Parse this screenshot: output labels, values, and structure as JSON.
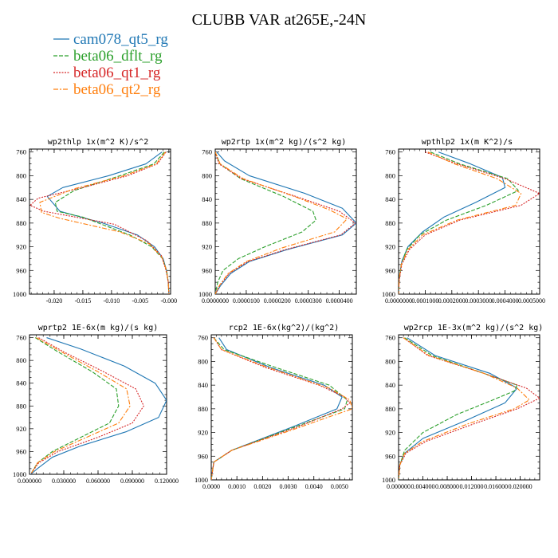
{
  "figure": {
    "title": "CLUBB VAR at265E,-24N"
  },
  "colors": {
    "cam078_qt5_rg": "#1f77b4",
    "beta06_dflt_rg": "#2ca02c",
    "beta06_qt1_rg": "#d62728",
    "beta06_qt2_rg": "#ff7f0e"
  },
  "legend": {
    "placement": "top-left",
    "entries": [
      {
        "name": "cam078_qt5_rg",
        "color": "#1f77b4",
        "style": "solid"
      },
      {
        "name": "beta06_dflt_rg",
        "color": "#2ca02c",
        "style": "dashed"
      },
      {
        "name": "beta06_qt1_rg",
        "color": "#d62728",
        "style": "dotted"
      },
      {
        "name": "beta06_qt2_rg",
        "color": "#ff7f0e",
        "style": "dashdot"
      }
    ]
  },
  "chart_data": [
    {
      "type": "line",
      "title": "wp2thlp  1x(m^2 K)/s^2",
      "xlim": [
        -0.0243,
        0.0003
      ],
      "xticks": [
        -0.02,
        -0.015,
        -0.01,
        -0.005,
        0.0
      ],
      "xtick_labels": [
        "-0.020",
        "-0.015",
        "-0.010",
        "-0.005",
        "-0.000"
      ],
      "ylim": [
        1000,
        755
      ],
      "yticks": [
        760,
        800,
        840,
        880,
        920,
        960,
        1000
      ],
      "series": [
        {
          "name": "cam078_qt5_rg",
          "x": [
            -0.0012,
            -0.004,
            -0.0105,
            -0.0185,
            -0.0212,
            -0.019,
            -0.0115,
            -0.0055,
            -0.0025,
            -0.001,
            -0.0004,
            -0.0001,
            0.0
          ],
          "y": [
            760,
            780,
            800,
            820,
            835,
            860,
            880,
            900,
            920,
            940,
            960,
            980,
            1000
          ]
        },
        {
          "name": "beta06_dflt_rg",
          "x": [
            -0.0008,
            -0.0026,
            -0.0085,
            -0.0165,
            -0.0198,
            -0.0195,
            -0.015,
            -0.0068,
            -0.003,
            -0.0011,
            -0.0004,
            -0.0001,
            0.0
          ],
          "y": [
            760,
            780,
            800,
            825,
            845,
            860,
            870,
            900,
            920,
            940,
            960,
            980,
            1000
          ]
        },
        {
          "name": "beta06_qt1_rg",
          "x": [
            -0.0005,
            -0.002,
            -0.0072,
            -0.015,
            -0.0228,
            -0.0242,
            -0.0218,
            -0.0095,
            -0.0038,
            -0.0013,
            -0.0005,
            -0.0001,
            0.0
          ],
          "y": [
            760,
            780,
            800,
            820,
            838,
            850,
            860,
            882,
            910,
            935,
            960,
            980,
            1000
          ]
        },
        {
          "name": "beta06_qt2_rg",
          "x": [
            -0.0006,
            -0.0022,
            -0.0078,
            -0.0165,
            -0.0225,
            -0.0222,
            -0.019,
            -0.0085,
            -0.0034,
            -0.0012,
            -0.0004,
            -0.0001,
            0.0
          ],
          "y": [
            760,
            780,
            800,
            822,
            845,
            862,
            872,
            895,
            915,
            938,
            960,
            980,
            1000
          ]
        }
      ]
    },
    {
      "type": "line",
      "title": "wp2rtp  1x(m^2 kg)/(s^2 kg)",
      "xlim": [
        0.0,
        4.55e-05
      ],
      "xticks": [
        0.0,
        1e-05,
        2e-05,
        3e-05,
        4e-05
      ],
      "xtick_labels": [
        "0.0000000",
        "0.0000100",
        "0.0000200",
        "0.0000300",
        "0.0000400"
      ],
      "ylim": [
        1000,
        755
      ],
      "yticks": [
        760,
        800,
        840,
        880,
        920,
        960,
        1000
      ],
      "series": [
        {
          "name": "cam078_qt5_rg",
          "x": [
            5e-07,
            3e-06,
            1.1e-05,
            2.9e-05,
            4.1e-05,
            4.55e-05,
            4.1e-05,
            2.3e-05,
            1.1e-05,
            5e-06,
            1.8e-06,
            0.0
          ],
          "y": [
            760,
            775,
            800,
            830,
            855,
            880,
            900,
            925,
            945,
            965,
            985,
            1000
          ]
        },
        {
          "name": "beta06_dflt_rg",
          "x": [
            0.0,
            1.5e-06,
            8.2e-06,
            2.2e-05,
            3.15e-05,
            3.25e-05,
            2.8e-05,
            1.6e-05,
            7.5e-06,
            2.5e-06,
            8e-07,
            0.0
          ],
          "y": [
            760,
            780,
            805,
            835,
            860,
            875,
            895,
            920,
            940,
            960,
            980,
            1000
          ]
        },
        {
          "name": "beta06_qt1_rg",
          "x": [
            0.0,
            1.2e-06,
            8.5e-06,
            2.6e-05,
            4e-05,
            4.52e-05,
            4.05e-05,
            2.25e-05,
            1.05e-05,
            4.5e-06,
            1.5e-06,
            0.0
          ],
          "y": [
            760,
            780,
            805,
            835,
            860,
            880,
            900,
            925,
            945,
            965,
            985,
            1000
          ]
        },
        {
          "name": "beta06_qt2_rg",
          "x": [
            0.0,
            1.6e-06,
            9e-06,
            2.55e-05,
            3.7e-05,
            4.25e-05,
            3.85e-05,
            2.15e-05,
            1e-05,
            4.2e-06,
            1.4e-06,
            0.0
          ],
          "y": [
            760,
            780,
            805,
            835,
            858,
            873,
            895,
            922,
            945,
            965,
            985,
            1000
          ]
        }
      ]
    },
    {
      "type": "line",
      "title": "wpthlp2  1x(m K^2)/s",
      "xlim": [
        0.0,
        0.00053
      ],
      "xticks": [
        0.0,
        0.0001,
        0.0002,
        0.0003,
        0.0004,
        0.0005
      ],
      "xtick_labels": [
        "0.0000000",
        "0.0001000",
        "0.0002000",
        "0.0003000",
        "0.0004000",
        "0.0005000"
      ],
      "ylim": [
        1000,
        755
      ],
      "yticks": [
        760,
        800,
        840,
        880,
        920,
        960,
        1000
      ],
      "series": [
        {
          "name": "cam078_qt5_rg",
          "x": [
            0.00015,
            0.00027,
            0.00039,
            0.0004,
            0.00029,
            0.00017,
            9e-05,
            3.5e-05,
            1.2e-05,
            3e-06,
            0.0
          ],
          "y": [
            760,
            780,
            803,
            820,
            845,
            870,
            895,
            920,
            945,
            970,
            1000
          ]
        },
        {
          "name": "beta06_dflt_rg",
          "x": [
            0.00012,
            0.00023,
            0.00041,
            0.00045,
            0.00033,
            0.00018,
            8e-05,
            3e-05,
            1e-05,
            2e-06,
            0.0
          ],
          "y": [
            760,
            780,
            805,
            825,
            850,
            875,
            900,
            925,
            950,
            975,
            1000
          ]
        },
        {
          "name": "beta06_qt1_rg",
          "x": [
            0.0001,
            0.00022,
            0.0004,
            0.00053,
            0.00046,
            0.00023,
            0.0001,
            4e-05,
            1.2e-05,
            3e-06,
            0.0
          ],
          "y": [
            760,
            780,
            805,
            830,
            850,
            875,
            900,
            925,
            950,
            975,
            1000
          ]
        },
        {
          "name": "beta06_qt2_rg",
          "x": [
            0.00011,
            0.00021,
            0.00037,
            0.00046,
            0.00044,
            0.00022,
            9e-05,
            3.5e-05,
            1e-05,
            2e-06,
            0.0
          ],
          "y": [
            760,
            780,
            805,
            830,
            850,
            875,
            900,
            925,
            950,
            975,
            1000
          ]
        }
      ]
    },
    {
      "type": "line",
      "title": "wprtp2  1E-6x(m kg)/(s kg)",
      "xlim": [
        0.0,
        0.12
      ],
      "xticks": [
        0.0,
        0.03,
        0.06,
        0.09,
        0.12
      ],
      "xtick_labels": [
        "0.000000",
        "0.030000",
        "0.060000",
        "0.090000",
        "0.120000"
      ],
      "ylim": [
        1000,
        755
      ],
      "yticks": [
        760,
        800,
        840,
        880,
        920,
        960,
        1000
      ],
      "series": [
        {
          "name": "cam078_qt5_rg",
          "x": [
            0.015,
            0.045,
            0.083,
            0.11,
            0.12,
            0.113,
            0.085,
            0.045,
            0.02,
            0.007,
            0.001
          ],
          "y": [
            760,
            780,
            810,
            840,
            870,
            900,
            925,
            950,
            970,
            990,
            1000
          ]
        },
        {
          "name": "beta06_dflt_rg",
          "x": [
            0.005,
            0.025,
            0.055,
            0.076,
            0.078,
            0.07,
            0.045,
            0.02,
            0.007,
            0.001
          ],
          "y": [
            760,
            785,
            820,
            850,
            880,
            910,
            935,
            960,
            980,
            1000
          ]
        },
        {
          "name": "beta06_qt1_rg",
          "x": [
            0.008,
            0.03,
            0.065,
            0.093,
            0.1,
            0.09,
            0.06,
            0.025,
            0.008,
            0.001
          ],
          "y": [
            760,
            785,
            820,
            850,
            880,
            910,
            935,
            960,
            980,
            1000
          ]
        },
        {
          "name": "beta06_qt2_rg",
          "x": [
            0.006,
            0.028,
            0.06,
            0.085,
            0.088,
            0.078,
            0.05,
            0.022,
            0.007,
            0.001
          ],
          "y": [
            760,
            785,
            820,
            850,
            880,
            910,
            935,
            960,
            980,
            1000
          ]
        }
      ]
    },
    {
      "type": "line",
      "title": "rcp2  1E-6x(kg^2)/(kg^2)",
      "xlim": [
        0.0,
        0.0055
      ],
      "xticks": [
        0.0,
        0.001,
        0.002,
        0.003,
        0.004,
        0.005
      ],
      "xtick_labels": [
        "0.0000",
        "0.0010",
        "0.0020",
        "0.0030",
        "0.0040",
        "0.0050"
      ],
      "ylim": [
        1000,
        755
      ],
      "yticks": [
        760,
        800,
        840,
        880,
        920,
        960,
        1000
      ],
      "series": [
        {
          "name": "cam078_qt5_rg",
          "x": [
            0.0003,
            0.0006,
            0.0023,
            0.0044,
            0.0051,
            0.0049,
            0.0032,
            0.0008,
            0.0001,
            0.0
          ],
          "y": [
            760,
            780,
            810,
            840,
            860,
            880,
            910,
            950,
            970,
            1000
          ]
        },
        {
          "name": "beta06_dflt_rg",
          "x": [
            0.0001,
            0.0005,
            0.0025,
            0.0046,
            0.0053,
            0.0052,
            0.0033,
            0.0008,
            0.0001,
            0.0
          ],
          "y": [
            760,
            780,
            810,
            840,
            865,
            880,
            910,
            950,
            970,
            1000
          ]
        },
        {
          "name": "beta06_qt1_rg",
          "x": [
            0.0001,
            0.0004,
            0.0021,
            0.0042,
            0.0052,
            0.0054,
            0.0051,
            0.0034,
            0.0008,
            0.0001,
            0.0
          ],
          "y": [
            760,
            780,
            810,
            840,
            860,
            870,
            880,
            910,
            950,
            970,
            1000
          ]
        },
        {
          "name": "beta06_qt2_rg",
          "x": [
            0.0001,
            0.0004,
            0.0022,
            0.0046,
            0.0054,
            0.0055,
            0.0045,
            0.0032,
            0.0008,
            0.0001,
            0.0
          ],
          "y": [
            760,
            780,
            810,
            845,
            865,
            880,
            895,
            915,
            950,
            970,
            1000
          ]
        }
      ]
    },
    {
      "type": "line",
      "title": "wp2rcp  1E-3x(m^2 kg)/(s^2 kg)",
      "xlim": [
        0.0,
        0.0232
      ],
      "xticks": [
        0.0,
        0.004,
        0.008,
        0.012,
        0.016,
        0.02
      ],
      "xtick_labels": [
        "0.000000",
        "0.004000",
        "0.008000",
        "0.012000",
        "0.016000",
        "0.020000"
      ],
      "ylim": [
        1000,
        755
      ],
      "yticks": [
        760,
        800,
        840,
        880,
        920,
        960,
        1000
      ],
      "series": [
        {
          "name": "cam078_qt5_rg",
          "x": [
            0.0014,
            0.006,
            0.015,
            0.0195,
            0.0175,
            0.011,
            0.004,
            0.001,
            0.0002,
            0.0
          ],
          "y": [
            760,
            790,
            820,
            845,
            870,
            900,
            930,
            955,
            975,
            1000
          ]
        },
        {
          "name": "beta06_dflt_rg",
          "x": [
            0.001,
            0.0055,
            0.014,
            0.0195,
            0.019,
            0.0155,
            0.0095,
            0.004,
            0.001,
            0.0002,
            0.0
          ],
          "y": [
            760,
            790,
            820,
            840,
            850,
            865,
            890,
            920,
            950,
            975,
            1000
          ]
        },
        {
          "name": "beta06_qt1_rg",
          "x": [
            0.0008,
            0.0048,
            0.014,
            0.021,
            0.0232,
            0.0195,
            0.0125,
            0.0045,
            0.0012,
            0.0002,
            0.0
          ],
          "y": [
            760,
            790,
            820,
            845,
            862,
            880,
            905,
            935,
            955,
            975,
            1000
          ]
        },
        {
          "name": "beta06_qt2_rg",
          "x": [
            0.0008,
            0.005,
            0.014,
            0.0195,
            0.0215,
            0.019,
            0.0115,
            0.004,
            0.001,
            0.0002,
            0.0
          ],
          "y": [
            760,
            790,
            820,
            845,
            865,
            880,
            905,
            935,
            955,
            975,
            1000
          ]
        }
      ]
    }
  ]
}
